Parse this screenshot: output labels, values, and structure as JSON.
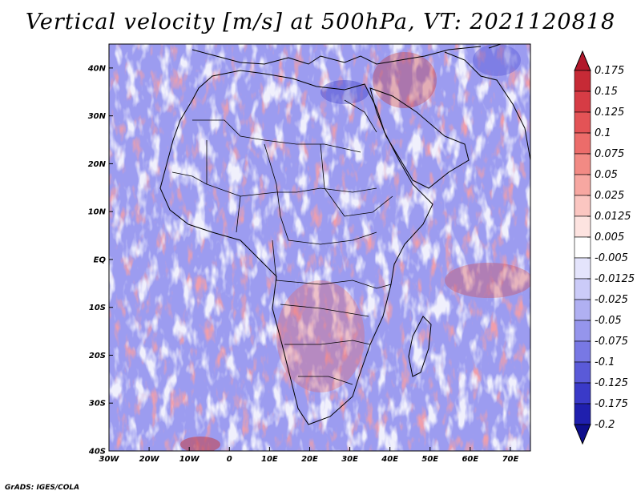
{
  "title": "Vertical velocity [m/s] at 500hPa, VT: 2021120818",
  "credit": "GrADS: IGES/COLA",
  "map": {
    "lon_labels": [
      "30W",
      "20W",
      "10W",
      "0",
      "10E",
      "20E",
      "30E",
      "40E",
      "50E",
      "60E",
      "70E"
    ],
    "lat_labels": [
      "40N",
      "30N",
      "20N",
      "10N",
      "EQ",
      "10S",
      "20S",
      "30S",
      "40S"
    ],
    "lon_range": [
      -30,
      75
    ],
    "lat_range": [
      -40,
      45
    ]
  },
  "colorbar": {
    "labels": [
      "0.175",
      "0.15",
      "0.125",
      "0.1",
      "0.075",
      "0.05",
      "0.025",
      "0.0125",
      "0.005",
      "-0.005",
      "-0.0125",
      "-0.025",
      "-0.05",
      "-0.075",
      "-0.1",
      "-0.125",
      "-0.175",
      "-0.2"
    ],
    "colors": [
      "#b2182b",
      "#c62a36",
      "#d63c45",
      "#e35356",
      "#ec6c6a",
      "#f28a84",
      "#f7a7a1",
      "#fbc6c1",
      "#fde3e0",
      "#ffffff",
      "#e4e4fc",
      "#cbcbf8",
      "#b0b0f2",
      "#9595ec",
      "#7878e4",
      "#5a5ad8",
      "#3a3ac8",
      "#1f1fae",
      "#0e0e8c"
    ]
  }
}
